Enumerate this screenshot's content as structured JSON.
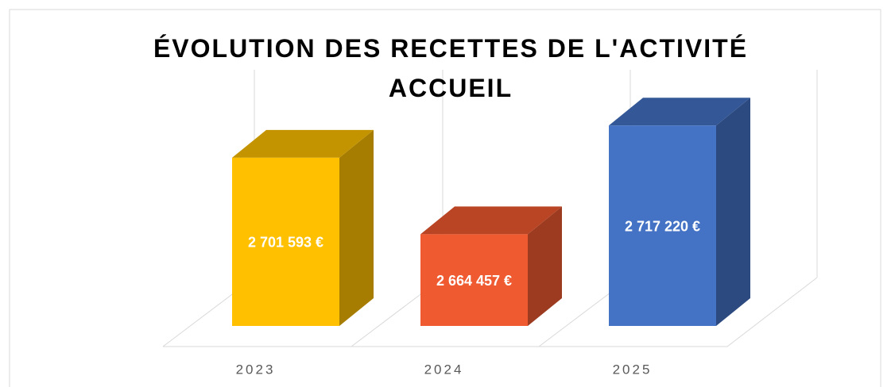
{
  "chart_data": {
    "type": "bar3d",
    "title": "ÉVOLUTION DES RECETTES DE L'ACTIVITÉ ACCUEIL",
    "categories": [
      "2023",
      "2024",
      "2025"
    ],
    "values": [
      2701593,
      2664457,
      2717220
    ],
    "value_labels": [
      "2 701 593 €",
      "2 664 457 €",
      "2 717 220 €"
    ],
    "colors": [
      "#FFC000",
      "#F05A30",
      "#4472C4"
    ],
    "ylim": [
      2620000,
      2730000
    ]
  }
}
